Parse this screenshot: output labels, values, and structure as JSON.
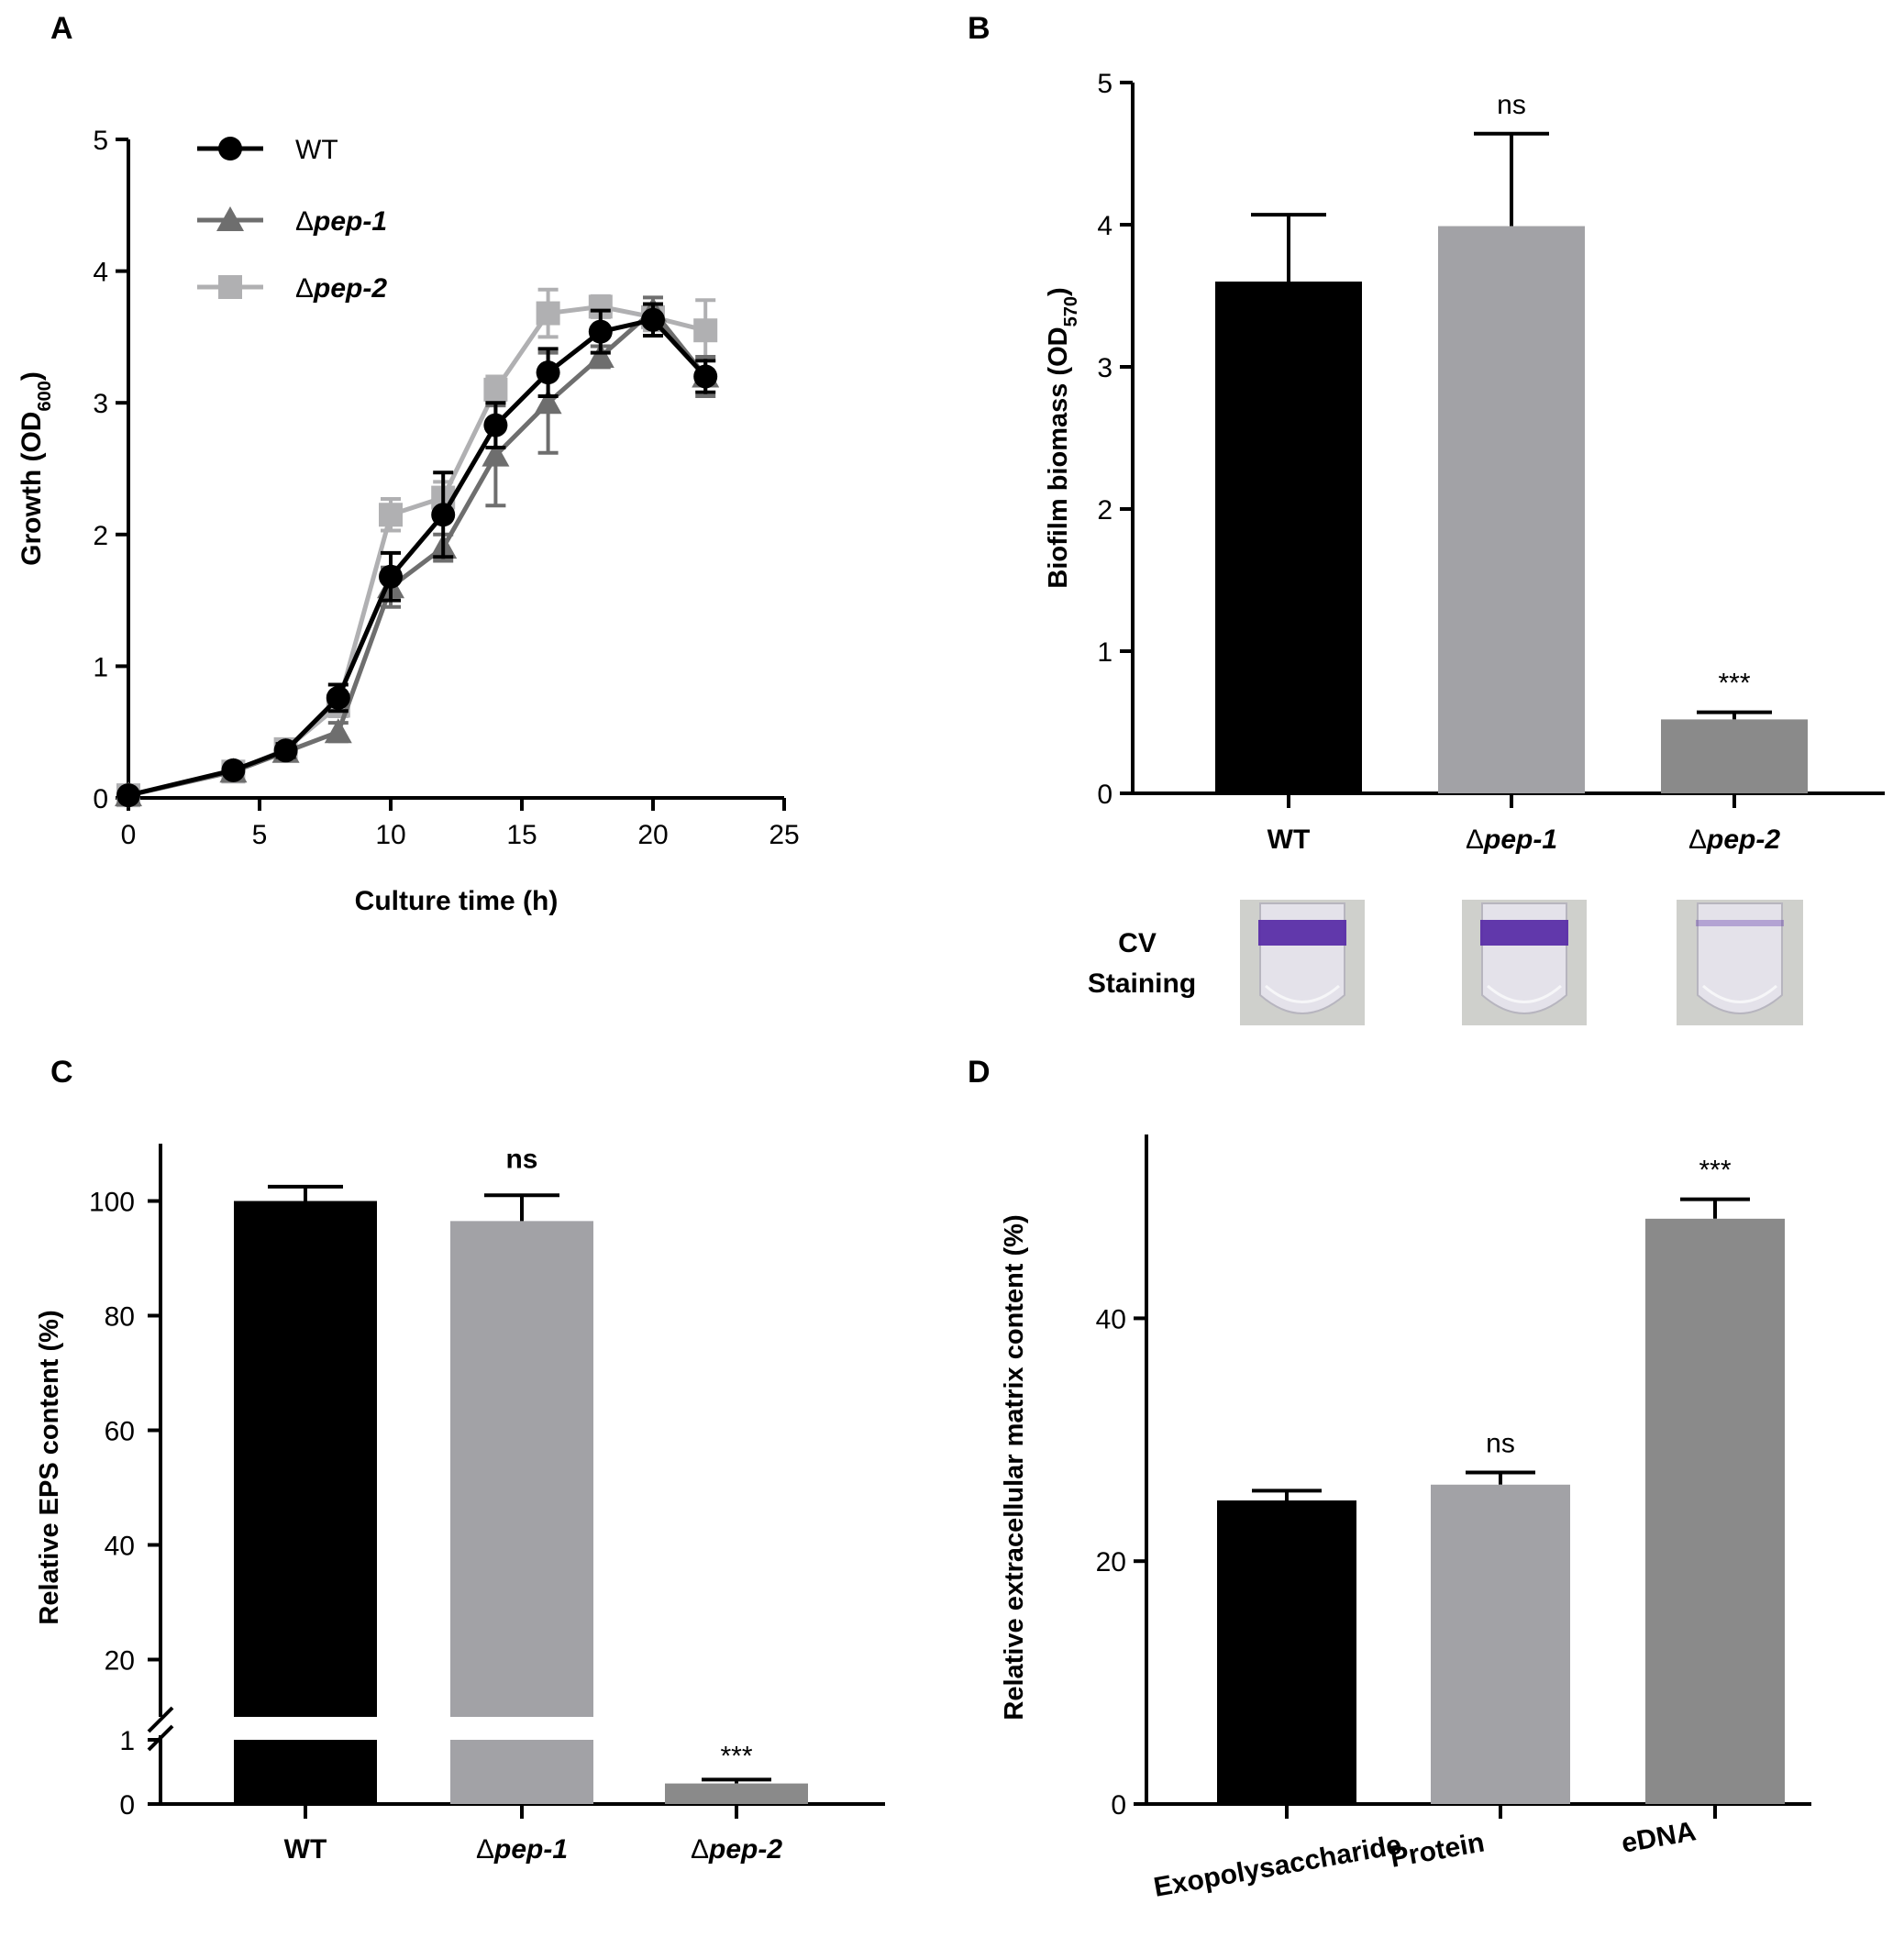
{
  "chart_data": [
    {
      "panel": "A",
      "type": "line",
      "xlabel": "Culture time (h)",
      "ylabel": "Growth (OD",
      "ylabel_sub": "600",
      "ylabel_close": ")",
      "xlim": [
        0,
        25
      ],
      "ylim": [
        0,
        5
      ],
      "xticks": [
        0,
        5,
        10,
        15,
        20,
        25
      ],
      "yticks": [
        0,
        1,
        2,
        3,
        4,
        5
      ],
      "legend_position": "top-left",
      "series": [
        {
          "name": "Δpep-2",
          "prefix": "Δ",
          "italic": "pep-2",
          "color": "#b0b0b2",
          "marker": "square",
          "x": [
            0,
            4,
            6,
            8,
            10,
            12,
            14,
            16,
            18,
            20,
            22
          ],
          "y": [
            0.02,
            0.2,
            0.37,
            0.7,
            2.15,
            2.28,
            3.1,
            3.68,
            3.73,
            3.65,
            3.55
          ],
          "err": [
            0.02,
            0.03,
            0.05,
            0.08,
            0.12,
            0.12,
            0.1,
            0.18,
            0.08,
            0.1,
            0.23
          ]
        },
        {
          "name": "Δpep-1",
          "prefix": "Δ",
          "italic": "pep-1",
          "color": "#6e6e6e",
          "marker": "triangle",
          "x": [
            0,
            4,
            6,
            8,
            10,
            12,
            14,
            16,
            18,
            20,
            22
          ],
          "y": [
            0.02,
            0.2,
            0.35,
            0.5,
            1.6,
            1.9,
            2.6,
            3.0,
            3.35,
            3.7,
            3.2
          ],
          "err": [
            0.02,
            0.03,
            0.05,
            0.07,
            0.15,
            0.1,
            0.38,
            0.38,
            0.08,
            0.1,
            0.15
          ]
        },
        {
          "name": "WT",
          "prefix": "",
          "italic": "",
          "color": "#000000",
          "marker": "circle",
          "x": [
            0,
            4,
            6,
            8,
            10,
            12,
            14,
            16,
            18,
            20,
            22
          ],
          "y": [
            0.02,
            0.21,
            0.36,
            0.76,
            1.68,
            2.15,
            2.83,
            3.23,
            3.54,
            3.63,
            3.2
          ],
          "err": [
            0.02,
            0.03,
            0.05,
            0.1,
            0.18,
            0.32,
            0.17,
            0.18,
            0.16,
            0.12,
            0.12
          ]
        }
      ]
    },
    {
      "panel": "B",
      "type": "bar",
      "ylabel": "Biofilm biomass (OD",
      "ylabel_sub": "570",
      "ylabel_close": ")",
      "ylim": [
        0,
        5
      ],
      "yticks": [
        0,
        1,
        2,
        3,
        4,
        5
      ],
      "categories": [
        {
          "prefix": "",
          "text": "WT",
          "italic": false
        },
        {
          "prefix": "Δ",
          "text": "pep-1",
          "italic": true
        },
        {
          "prefix": "Δ",
          "text": "pep-2",
          "italic": true
        }
      ],
      "values": [
        3.6,
        3.99,
        0.52
      ],
      "errors": [
        0.47,
        0.65,
        0.05
      ],
      "colors": [
        "#000000",
        "#a2a2a6",
        "#8a8a8a"
      ],
      "annotations": [
        "",
        "ns",
        "***"
      ],
      "inset_label_line1": "CV",
      "inset_label_line2": "Staining"
    },
    {
      "panel": "C",
      "type": "bar",
      "ylabel": "Relative EPS content (%)",
      "broken_axis": true,
      "ylim_lower": [
        0,
        1
      ],
      "ylim_upper": [
        10,
        110
      ],
      "yticks_lower": [
        0,
        1
      ],
      "yticks_upper": [
        20,
        40,
        60,
        80,
        100
      ],
      "categories": [
        {
          "prefix": "",
          "text": "WT",
          "italic": false
        },
        {
          "prefix": "Δ",
          "text": "pep-1",
          "italic": true
        },
        {
          "prefix": "Δ",
          "text": "pep-2",
          "italic": true
        }
      ],
      "values": [
        100,
        96.5,
        0.32
      ],
      "errors": [
        2.5,
        4.5,
        0.06
      ],
      "colors": [
        "#000000",
        "#a2a2a6",
        "#8a8a8a"
      ],
      "annotations": [
        "",
        "ns",
        "***"
      ]
    },
    {
      "panel": "D",
      "type": "bar",
      "ylabel": "Relative extracellular matrix content (%)",
      "ylim": [
        0,
        55
      ],
      "yticks": [
        0,
        20,
        40
      ],
      "categories": [
        "Exopolysaccharide",
        "Protein",
        "eDNA"
      ],
      "values": [
        25,
        26.3,
        48.2
      ],
      "errors": [
        0.8,
        1.0,
        1.6
      ],
      "colors": [
        "#000000",
        "#a2a2a6",
        "#8a8a8a"
      ],
      "annotations": [
        "",
        "ns",
        "***"
      ]
    }
  ],
  "panels": {
    "a": "A",
    "b": "B",
    "c": "C",
    "d": "D"
  }
}
